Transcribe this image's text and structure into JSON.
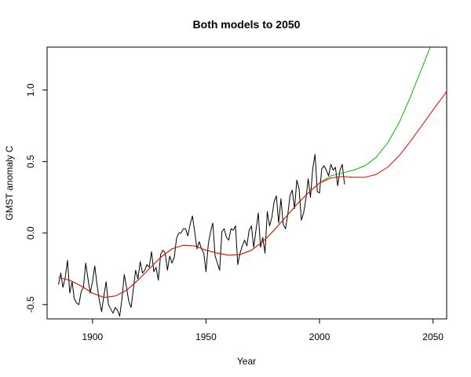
{
  "chart_data": {
    "type": "line",
    "title": "Both models to 2050",
    "xlabel": "Year",
    "ylabel": "GMST anomaly C",
    "xlim": [
      1880,
      2056
    ],
    "ylim": [
      -0.6,
      1.3
    ],
    "xticks": [
      1900,
      1950,
      2000,
      2050
    ],
    "yticks": [
      -0.5,
      0.0,
      0.5,
      1.0
    ],
    "xtick_labels": [
      "1900",
      "1950",
      "2000",
      "2050"
    ],
    "ytick_labels": [
      "-0.5",
      "0.0",
      "0.5",
      "1.0"
    ],
    "grid": false,
    "legend": "none",
    "series": [
      {
        "color": "#000000",
        "x": [
          1885,
          1886,
          1887,
          1888,
          1889,
          1890,
          1891,
          1892,
          1893,
          1894,
          1895,
          1896,
          1897,
          1898,
          1899,
          1900,
          1901,
          1902,
          1903,
          1904,
          1905,
          1906,
          1907,
          1908,
          1909,
          1910,
          1911,
          1912,
          1913,
          1914,
          1915,
          1916,
          1917,
          1918,
          1919,
          1920,
          1921,
          1922,
          1923,
          1924,
          1925,
          1926,
          1927,
          1928,
          1929,
          1930,
          1931,
          1932,
          1933,
          1934,
          1935,
          1936,
          1937,
          1938,
          1939,
          1940,
          1941,
          1942,
          1943,
          1944,
          1945,
          1946,
          1947,
          1948,
          1949,
          1950,
          1951,
          1952,
          1953,
          1954,
          1955,
          1956,
          1957,
          1958,
          1959,
          1960,
          1961,
          1962,
          1963,
          1964,
          1965,
          1966,
          1967,
          1968,
          1969,
          1970,
          1971,
          1972,
          1973,
          1974,
          1975,
          1976,
          1977,
          1978,
          1979,
          1980,
          1981,
          1982,
          1983,
          1984,
          1985,
          1986,
          1987,
          1988,
          1989,
          1990,
          1991,
          1992,
          1993,
          1994,
          1995,
          1996,
          1997,
          1998,
          1999,
          2000,
          2001,
          2002,
          2003,
          2004,
          2005,
          2006,
          2007,
          2008,
          2009,
          2010,
          2011
        ],
        "y": [
          -0.36,
          -0.28,
          -0.38,
          -0.31,
          -0.19,
          -0.42,
          -0.34,
          -0.46,
          -0.49,
          -0.5,
          -0.41,
          -0.38,
          -0.21,
          -0.32,
          -0.42,
          -0.34,
          -0.23,
          -0.36,
          -0.47,
          -0.55,
          -0.44,
          -0.34,
          -0.5,
          -0.53,
          -0.56,
          -0.52,
          -0.54,
          -0.58,
          -0.46,
          -0.29,
          -0.38,
          -0.48,
          -0.52,
          -0.39,
          -0.26,
          -0.32,
          -0.2,
          -0.28,
          -0.26,
          -0.22,
          -0.24,
          -0.13,
          -0.27,
          -0.24,
          -0.33,
          -0.15,
          -0.12,
          -0.14,
          -0.26,
          -0.16,
          -0.21,
          -0.17,
          -0.04,
          0.0,
          0.0,
          0.03,
          0.03,
          -0.02,
          0.06,
          0.12,
          0.01,
          -0.11,
          -0.06,
          -0.11,
          -0.14,
          -0.27,
          -0.08,
          0.01,
          0.07,
          -0.16,
          -0.21,
          -0.26,
          0.01,
          0.03,
          -0.03,
          -0.05,
          0.03,
          0.02,
          0.05,
          -0.22,
          -0.14,
          -0.09,
          -0.05,
          -0.09,
          0.02,
          0.05,
          -0.1,
          0.02,
          0.14,
          -0.1,
          -0.03,
          -0.14,
          0.15,
          0.05,
          0.11,
          0.22,
          0.26,
          0.07,
          0.24,
          0.06,
          0.03,
          0.13,
          0.26,
          0.3,
          0.17,
          0.37,
          0.31,
          0.09,
          0.14,
          0.24,
          0.38,
          0.25,
          0.45,
          0.55,
          0.29,
          0.28,
          0.45,
          0.47,
          0.44,
          0.4,
          0.48,
          0.44,
          0.46,
          0.33,
          0.44,
          0.48,
          0.34
        ]
      },
      {
        "color": "#00bb00",
        "x": [
          1885,
          1890,
          1895,
          1900,
          1905,
          1910,
          1915,
          1920,
          1925,
          1930,
          1935,
          1940,
          1945,
          1950,
          1955,
          1960,
          1965,
          1970,
          1975,
          1980,
          1985,
          1990,
          1995,
          2000,
          2005,
          2010,
          2015,
          2020,
          2025,
          2030,
          2035,
          2040,
          2045,
          2049
        ],
        "y": [
          -0.31,
          -0.33,
          -0.37,
          -0.42,
          -0.45,
          -0.44,
          -0.4,
          -0.33,
          -0.25,
          -0.17,
          -0.11,
          -0.085,
          -0.09,
          -0.12,
          -0.14,
          -0.155,
          -0.15,
          -0.12,
          -0.06,
          0.02,
          0.11,
          0.2,
          0.28,
          0.35,
          0.4,
          0.42,
          0.44,
          0.47,
          0.53,
          0.63,
          0.77,
          0.95,
          1.15,
          1.31
        ]
      },
      {
        "color": "#ee0000",
        "x": [
          1885,
          1890,
          1895,
          1900,
          1905,
          1910,
          1915,
          1920,
          1925,
          1930,
          1935,
          1940,
          1945,
          1950,
          1955,
          1960,
          1965,
          1970,
          1975,
          1980,
          1985,
          1990,
          1995,
          2000,
          2005,
          2010,
          2015,
          2020,
          2025,
          2030,
          2035,
          2040,
          2045,
          2050,
          2056
        ],
        "y": [
          -0.31,
          -0.33,
          -0.37,
          -0.42,
          -0.45,
          -0.44,
          -0.4,
          -0.33,
          -0.25,
          -0.17,
          -0.11,
          -0.085,
          -0.09,
          -0.12,
          -0.14,
          -0.155,
          -0.15,
          -0.12,
          -0.06,
          0.02,
          0.11,
          0.2,
          0.28,
          0.35,
          0.385,
          0.395,
          0.39,
          0.39,
          0.41,
          0.46,
          0.54,
          0.64,
          0.75,
          0.86,
          0.99
        ]
      }
    ]
  }
}
